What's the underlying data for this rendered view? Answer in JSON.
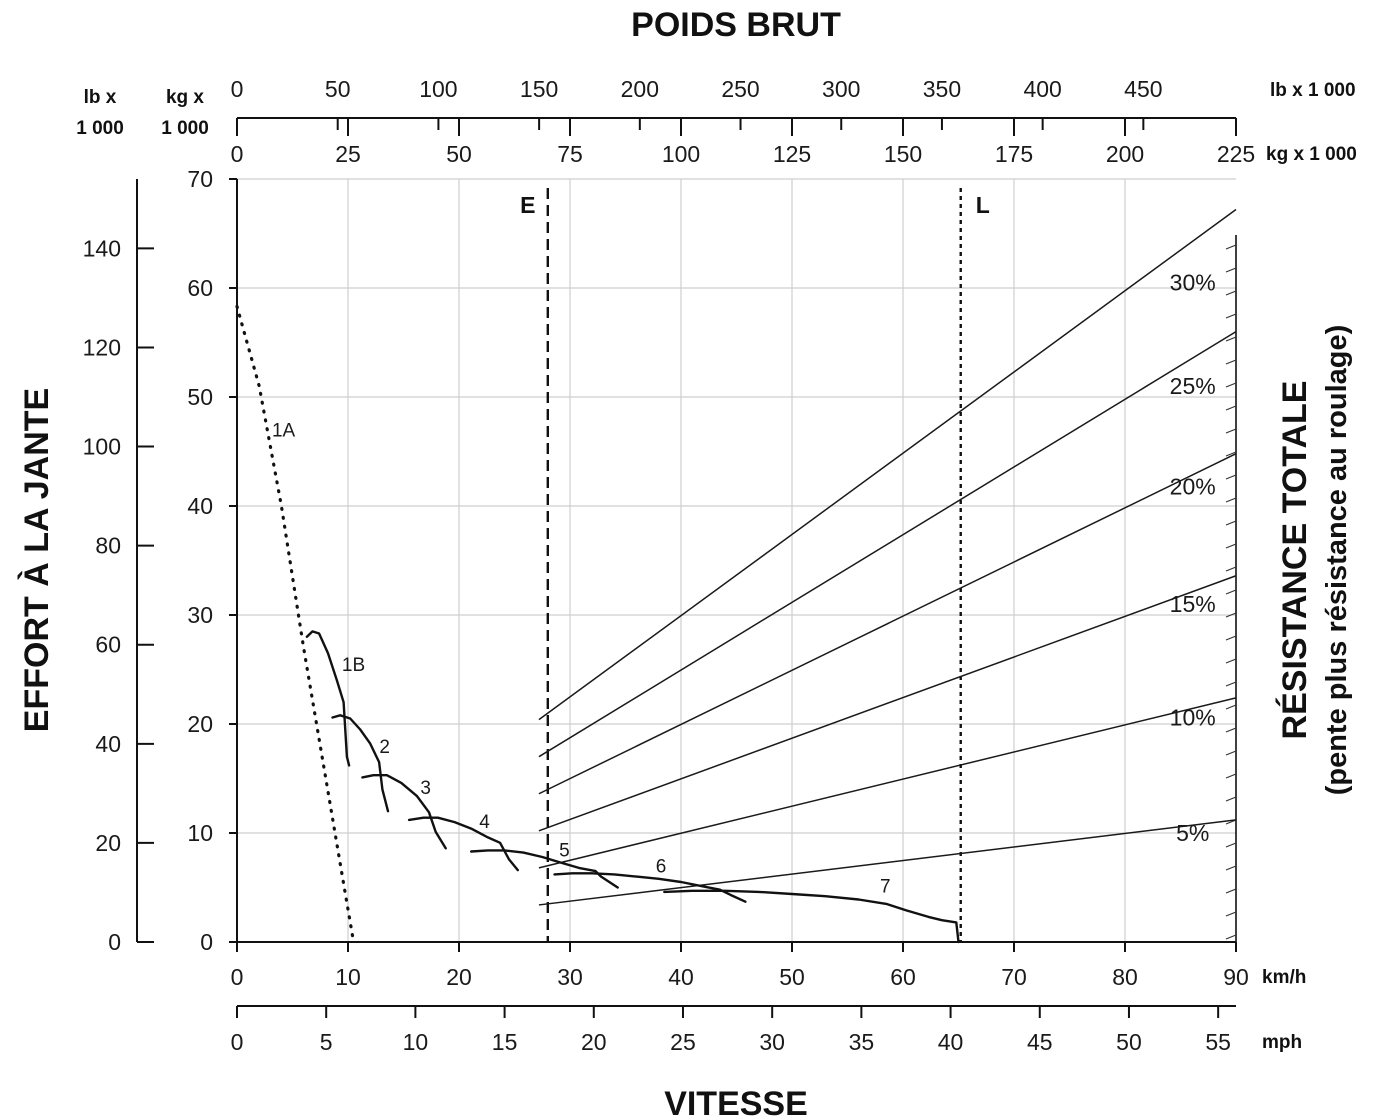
{
  "chart_data": {
    "type": "line",
    "title": "POIDS BRUT",
    "xlabel": "VITESSE",
    "ylabel": "EFFORT À LA JANTE",
    "y2label": "RÉSISTANCE TOTALE",
    "y2label_sub": "(pente plus résistance au roulage)",
    "grid": true,
    "x_axis": {
      "unit": "km/h",
      "range": [
        0,
        90
      ],
      "ticks": [
        "0",
        "10",
        "20",
        "30",
        "40",
        "50",
        "60",
        "70",
        "80",
        "90"
      ]
    },
    "x2_axis": {
      "unit": "mph",
      "range": [
        0,
        56
      ],
      "ticks": [
        "0",
        "5",
        "10",
        "15",
        "20",
        "25",
        "30",
        "35",
        "40",
        "45",
        "50",
        "55"
      ]
    },
    "y_axis_kg": {
      "unit": "kg x 1 000",
      "range": [
        0,
        70
      ],
      "ticks": [
        "0",
        "10",
        "20",
        "30",
        "40",
        "50",
        "60",
        "70"
      ]
    },
    "y_axis_lb": {
      "unit": "lb x 1 000",
      "range": [
        0,
        154
      ],
      "ticks": [
        "0",
        "20",
        "40",
        "60",
        "80",
        "100",
        "120",
        "140"
      ]
    },
    "top_axis_lb": {
      "unit": "lb x 1 000",
      "range": [
        0,
        496
      ],
      "ticks": [
        "0",
        "50",
        "100",
        "150",
        "200",
        "250",
        "300",
        "350",
        "400",
        "450"
      ]
    },
    "top_axis_kg": {
      "unit": "kg x 1 000",
      "range": [
        0,
        225
      ],
      "ticks": [
        "0",
        "25",
        "50",
        "75",
        "100",
        "125",
        "150",
        "175",
        "200",
        "225"
      ]
    },
    "top_left_units": {
      "lb": "lb x\n1 000",
      "kg": "kg x\n1 000"
    },
    "markers": [
      {
        "label": "E",
        "weight_kg_thousands": 70,
        "style": "dashed"
      },
      {
        "label": "L",
        "weight_kg_thousands": 163,
        "style": "dotted"
      }
    ],
    "gear_curves": [
      {
        "name": "1A",
        "style": "dotted",
        "label_at": [
          4.2,
          47
        ],
        "points": [
          [
            0,
            58.3
          ],
          [
            2,
            51
          ],
          [
            4,
            40
          ],
          [
            6,
            27
          ],
          [
            8,
            15
          ],
          [
            9.5,
            6
          ],
          [
            10.5,
            0
          ]
        ]
      },
      {
        "name": "1B",
        "style": "solid",
        "label_at": [
          10.5,
          25.5
        ],
        "points": [
          [
            6.3,
            28
          ],
          [
            6.8,
            28.5
          ],
          [
            7.4,
            28.3
          ],
          [
            8.2,
            26.5
          ],
          [
            9.0,
            24
          ],
          [
            9.6,
            22
          ],
          [
            9.9,
            17
          ],
          [
            10.1,
            16.2
          ]
        ]
      },
      {
        "name": "2",
        "style": "solid",
        "label_at": [
          13.3,
          18
        ],
        "points": [
          [
            8.6,
            20.6
          ],
          [
            9.3,
            20.8
          ],
          [
            10.2,
            20.5
          ],
          [
            11.1,
            19.5
          ],
          [
            12.0,
            18.2
          ],
          [
            12.8,
            16.5
          ],
          [
            13.1,
            14.0
          ],
          [
            13.6,
            12.0
          ]
        ]
      },
      {
        "name": "3",
        "style": "solid",
        "label_at": [
          17.0,
          14.2
        ],
        "points": [
          [
            11.3,
            15.1
          ],
          [
            12.3,
            15.3
          ],
          [
            13.5,
            15.3
          ],
          [
            14.8,
            14.6
          ],
          [
            16.2,
            13.4
          ],
          [
            17.3,
            11.9
          ],
          [
            17.9,
            10.1
          ],
          [
            18.8,
            8.6
          ]
        ]
      },
      {
        "name": "4",
        "style": "solid",
        "label_at": [
          22.3,
          11.1
        ],
        "points": [
          [
            15.5,
            11.2
          ],
          [
            16.8,
            11.4
          ],
          [
            18.1,
            11.4
          ],
          [
            19.6,
            11.0
          ],
          [
            21.1,
            10.4
          ],
          [
            22.6,
            9.6
          ],
          [
            23.7,
            9.1
          ],
          [
            24.5,
            7.6
          ],
          [
            25.3,
            6.6
          ]
        ]
      },
      {
        "name": "5",
        "style": "solid",
        "label_at": [
          29.5,
          8.5
        ],
        "points": [
          [
            21.1,
            8.3
          ],
          [
            22.6,
            8.4
          ],
          [
            24.1,
            8.4
          ],
          [
            25.8,
            8.2
          ],
          [
            27.5,
            7.8
          ],
          [
            29.1,
            7.3
          ],
          [
            30.8,
            6.8
          ],
          [
            32.3,
            6.5
          ],
          [
            32.8,
            6.0
          ],
          [
            34.3,
            5.0
          ]
        ]
      },
      {
        "name": "6",
        "style": "solid",
        "label_at": [
          38.2,
          7.0
        ],
        "points": [
          [
            28.6,
            6.2
          ],
          [
            30.2,
            6.3
          ],
          [
            32.0,
            6.3
          ],
          [
            34.0,
            6.2
          ],
          [
            36.0,
            6.0
          ],
          [
            38.0,
            5.8
          ],
          [
            40.0,
            5.5
          ],
          [
            42.0,
            5.1
          ],
          [
            43.5,
            4.8
          ],
          [
            44.5,
            4.3
          ],
          [
            45.8,
            3.7
          ]
        ]
      },
      {
        "name": "7",
        "style": "solid",
        "label_at": [
          58.4,
          5.2
        ],
        "points": [
          [
            38.5,
            4.6
          ],
          [
            41.0,
            4.7
          ],
          [
            44.0,
            4.7
          ],
          [
            47.0,
            4.6
          ],
          [
            50.0,
            4.4
          ],
          [
            53.0,
            4.2
          ],
          [
            56.0,
            3.9
          ],
          [
            58.5,
            3.5
          ],
          [
            60.3,
            2.9
          ],
          [
            62.3,
            2.3
          ],
          [
            63.5,
            2.0
          ],
          [
            64.8,
            1.8
          ],
          [
            65.0,
            0
          ]
        ]
      }
    ],
    "resistance_lines": [
      {
        "name": "5%",
        "x": [
          27.2,
          90
        ],
        "y": [
          3.4,
          11.2
        ],
        "label_at": [
          86.1,
          10.0
        ]
      },
      {
        "name": "10%",
        "x": [
          27.2,
          90
        ],
        "y": [
          6.8,
          22.4
        ],
        "label_at": [
          86.1,
          20.6
        ]
      },
      {
        "name": "15%",
        "x": [
          27.2,
          90
        ],
        "y": [
          10.2,
          33.6
        ],
        "label_at": [
          86.1,
          31.0
        ]
      },
      {
        "name": "20%",
        "x": [
          27.2,
          90
        ],
        "y": [
          13.6,
          44.8
        ],
        "label_at": [
          86.1,
          41.8
        ]
      },
      {
        "name": "25%",
        "x": [
          27.2,
          90
        ],
        "y": [
          17.0,
          56.0
        ],
        "label_at": [
          86.1,
          51.0
        ]
      },
      {
        "name": "30%",
        "x": [
          27.2,
          90
        ],
        "y": [
          20.4,
          67.2
        ],
        "label_at": [
          86.1,
          60.5
        ]
      }
    ]
  }
}
